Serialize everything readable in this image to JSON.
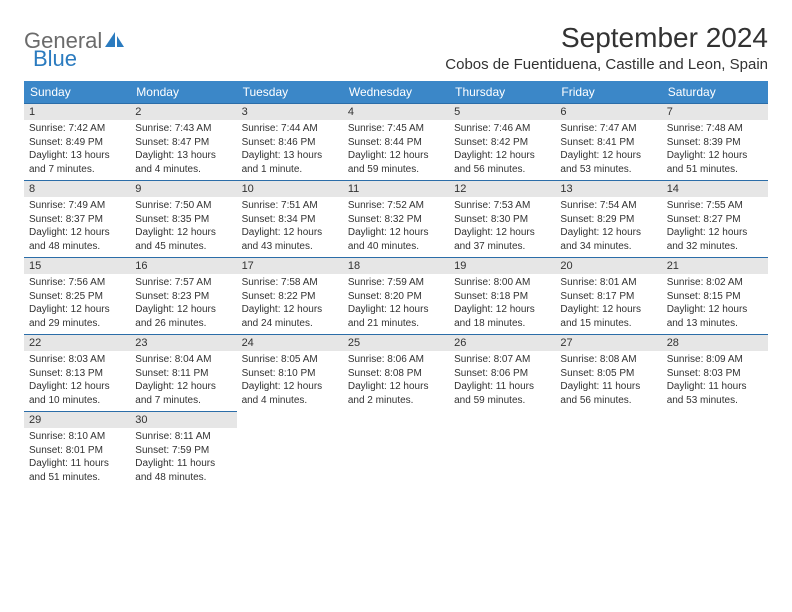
{
  "logo": {
    "text_general": "General",
    "text_blue": "Blue",
    "icon_color": "#2b7bbf"
  },
  "header": {
    "title": "September 2024",
    "subtitle": "Cobos de Fuentiduena, Castille and Leon, Spain"
  },
  "styling": {
    "header_bg": "#3b87c8",
    "header_text": "#ffffff",
    "day_number_bg": "#e6e6e6",
    "day_border_top": "#2b6da8",
    "text_color": "#323232"
  },
  "weekdays": [
    "Sunday",
    "Monday",
    "Tuesday",
    "Wednesday",
    "Thursday",
    "Friday",
    "Saturday"
  ],
  "days": [
    {
      "num": "1",
      "sunrise": "Sunrise: 7:42 AM",
      "sunset": "Sunset: 8:49 PM",
      "daylight": "Daylight: 13 hours and 7 minutes."
    },
    {
      "num": "2",
      "sunrise": "Sunrise: 7:43 AM",
      "sunset": "Sunset: 8:47 PM",
      "daylight": "Daylight: 13 hours and 4 minutes."
    },
    {
      "num": "3",
      "sunrise": "Sunrise: 7:44 AM",
      "sunset": "Sunset: 8:46 PM",
      "daylight": "Daylight: 13 hours and 1 minute."
    },
    {
      "num": "4",
      "sunrise": "Sunrise: 7:45 AM",
      "sunset": "Sunset: 8:44 PM",
      "daylight": "Daylight: 12 hours and 59 minutes."
    },
    {
      "num": "5",
      "sunrise": "Sunrise: 7:46 AM",
      "sunset": "Sunset: 8:42 PM",
      "daylight": "Daylight: 12 hours and 56 minutes."
    },
    {
      "num": "6",
      "sunrise": "Sunrise: 7:47 AM",
      "sunset": "Sunset: 8:41 PM",
      "daylight": "Daylight: 12 hours and 53 minutes."
    },
    {
      "num": "7",
      "sunrise": "Sunrise: 7:48 AM",
      "sunset": "Sunset: 8:39 PM",
      "daylight": "Daylight: 12 hours and 51 minutes."
    },
    {
      "num": "8",
      "sunrise": "Sunrise: 7:49 AM",
      "sunset": "Sunset: 8:37 PM",
      "daylight": "Daylight: 12 hours and 48 minutes."
    },
    {
      "num": "9",
      "sunrise": "Sunrise: 7:50 AM",
      "sunset": "Sunset: 8:35 PM",
      "daylight": "Daylight: 12 hours and 45 minutes."
    },
    {
      "num": "10",
      "sunrise": "Sunrise: 7:51 AM",
      "sunset": "Sunset: 8:34 PM",
      "daylight": "Daylight: 12 hours and 43 minutes."
    },
    {
      "num": "11",
      "sunrise": "Sunrise: 7:52 AM",
      "sunset": "Sunset: 8:32 PM",
      "daylight": "Daylight: 12 hours and 40 minutes."
    },
    {
      "num": "12",
      "sunrise": "Sunrise: 7:53 AM",
      "sunset": "Sunset: 8:30 PM",
      "daylight": "Daylight: 12 hours and 37 minutes."
    },
    {
      "num": "13",
      "sunrise": "Sunrise: 7:54 AM",
      "sunset": "Sunset: 8:29 PM",
      "daylight": "Daylight: 12 hours and 34 minutes."
    },
    {
      "num": "14",
      "sunrise": "Sunrise: 7:55 AM",
      "sunset": "Sunset: 8:27 PM",
      "daylight": "Daylight: 12 hours and 32 minutes."
    },
    {
      "num": "15",
      "sunrise": "Sunrise: 7:56 AM",
      "sunset": "Sunset: 8:25 PM",
      "daylight": "Daylight: 12 hours and 29 minutes."
    },
    {
      "num": "16",
      "sunrise": "Sunrise: 7:57 AM",
      "sunset": "Sunset: 8:23 PM",
      "daylight": "Daylight: 12 hours and 26 minutes."
    },
    {
      "num": "17",
      "sunrise": "Sunrise: 7:58 AM",
      "sunset": "Sunset: 8:22 PM",
      "daylight": "Daylight: 12 hours and 24 minutes."
    },
    {
      "num": "18",
      "sunrise": "Sunrise: 7:59 AM",
      "sunset": "Sunset: 8:20 PM",
      "daylight": "Daylight: 12 hours and 21 minutes."
    },
    {
      "num": "19",
      "sunrise": "Sunrise: 8:00 AM",
      "sunset": "Sunset: 8:18 PM",
      "daylight": "Daylight: 12 hours and 18 minutes."
    },
    {
      "num": "20",
      "sunrise": "Sunrise: 8:01 AM",
      "sunset": "Sunset: 8:17 PM",
      "daylight": "Daylight: 12 hours and 15 minutes."
    },
    {
      "num": "21",
      "sunrise": "Sunrise: 8:02 AM",
      "sunset": "Sunset: 8:15 PM",
      "daylight": "Daylight: 12 hours and 13 minutes."
    },
    {
      "num": "22",
      "sunrise": "Sunrise: 8:03 AM",
      "sunset": "Sunset: 8:13 PM",
      "daylight": "Daylight: 12 hours and 10 minutes."
    },
    {
      "num": "23",
      "sunrise": "Sunrise: 8:04 AM",
      "sunset": "Sunset: 8:11 PM",
      "daylight": "Daylight: 12 hours and 7 minutes."
    },
    {
      "num": "24",
      "sunrise": "Sunrise: 8:05 AM",
      "sunset": "Sunset: 8:10 PM",
      "daylight": "Daylight: 12 hours and 4 minutes."
    },
    {
      "num": "25",
      "sunrise": "Sunrise: 8:06 AM",
      "sunset": "Sunset: 8:08 PM",
      "daylight": "Daylight: 12 hours and 2 minutes."
    },
    {
      "num": "26",
      "sunrise": "Sunrise: 8:07 AM",
      "sunset": "Sunset: 8:06 PM",
      "daylight": "Daylight: 11 hours and 59 minutes."
    },
    {
      "num": "27",
      "sunrise": "Sunrise: 8:08 AM",
      "sunset": "Sunset: 8:05 PM",
      "daylight": "Daylight: 11 hours and 56 minutes."
    },
    {
      "num": "28",
      "sunrise": "Sunrise: 8:09 AM",
      "sunset": "Sunset: 8:03 PM",
      "daylight": "Daylight: 11 hours and 53 minutes."
    },
    {
      "num": "29",
      "sunrise": "Sunrise: 8:10 AM",
      "sunset": "Sunset: 8:01 PM",
      "daylight": "Daylight: 11 hours and 51 minutes."
    },
    {
      "num": "30",
      "sunrise": "Sunrise: 8:11 AM",
      "sunset": "Sunset: 7:59 PM",
      "daylight": "Daylight: 11 hours and 48 minutes."
    }
  ]
}
